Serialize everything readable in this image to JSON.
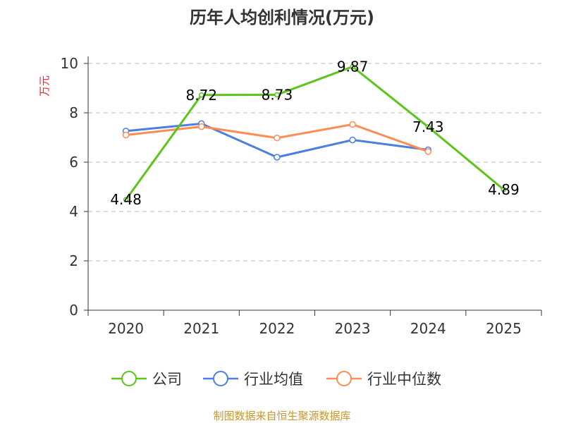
{
  "chart_data": {
    "type": "line",
    "title": "历年人均创利情况(万元)",
    "ylabel": "万元",
    "xlabel": "",
    "categories": [
      "2020",
      "2021",
      "2022",
      "2023",
      "2024",
      "2025"
    ],
    "ylim": [
      0,
      10
    ],
    "yticks": [
      0,
      2,
      4,
      6,
      8,
      10
    ],
    "grid": true,
    "legend_position": "bottom",
    "series": [
      {
        "name": "公司",
        "color": "#5cc41a",
        "values": [
          4.48,
          8.72,
          8.73,
          9.87,
          7.43,
          4.89
        ],
        "labels": [
          "4.48",
          "8.72",
          "8.73",
          "9.87",
          "7.43",
          "4.89"
        ]
      },
      {
        "name": "行业均值",
        "color": "#4a7fe0",
        "values": [
          7.26,
          7.56,
          6.2,
          6.9,
          6.5,
          null
        ]
      },
      {
        "name": "行业中位数",
        "color": "#ff8c55",
        "values": [
          7.1,
          7.44,
          6.98,
          7.53,
          6.43,
          null
        ]
      }
    ],
    "source": "制图数据来自恒生聚源数据库"
  }
}
